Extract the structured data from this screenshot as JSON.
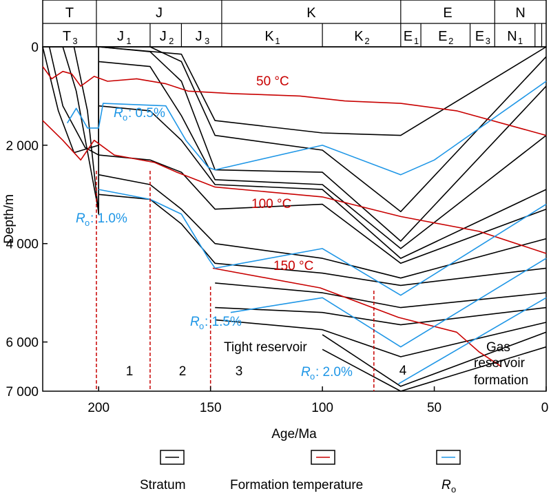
{
  "chart_data": {
    "type": "line",
    "xlabel": "Age/Ma",
    "ylabel": "Depth/m",
    "xlim": [
      225,
      0
    ],
    "ylim": [
      7000,
      0
    ],
    "x_ticks": [
      "200",
      "150",
      "100",
      "50",
      "0"
    ],
    "y_ticks": [
      "0",
      "2 000",
      "4 000",
      "6 000",
      "7 000"
    ],
    "colors": {
      "stratum": "#000000",
      "temperature": "#c80000",
      "ro": "#1e96e6"
    },
    "periods": [
      {
        "label": "T",
        "start": 225,
        "end": 201
      },
      {
        "label": "J",
        "start": 201,
        "end": 145
      },
      {
        "label": "K",
        "start": 145,
        "end": 65
      },
      {
        "label": "E",
        "start": 65,
        "end": 23
      },
      {
        "label": "N",
        "start": 23,
        "end": 0
      }
    ],
    "epochs": [
      {
        "label": "T",
        "sub": "3",
        "start": 225,
        "end": 201
      },
      {
        "label": "J",
        "sub": "1",
        "start": 201,
        "end": 177
      },
      {
        "label": "J",
        "sub": "2",
        "start": 177,
        "end": 163
      },
      {
        "label": "J",
        "sub": "3",
        "start": 163,
        "end": 145
      },
      {
        "label": "K",
        "sub": "1",
        "start": 145,
        "end": 100
      },
      {
        "label": "K",
        "sub": "2",
        "start": 100,
        "end": 65
      },
      {
        "label": "E",
        "sub": "1",
        "start": 65,
        "end": 56
      },
      {
        "label": "E",
        "sub": "2",
        "start": 56,
        "end": 34
      },
      {
        "label": "E",
        "sub": "3",
        "start": 34,
        "end": 23
      },
      {
        "label": "N",
        "sub": "1",
        "start": 23,
        "end": 5
      },
      {
        "label": "",
        "sub": "",
        "start": 5,
        "end": 2
      },
      {
        "label": "",
        "sub": "",
        "start": 2,
        "end": 0
      }
    ],
    "stratum_series": [
      [
        [
          225,
          0
        ],
        [
          200,
          0
        ],
        [
          163,
          150
        ],
        [
          148,
          1500
        ],
        [
          100,
          1750
        ],
        [
          65,
          1800
        ],
        [
          0,
          0
        ]
      ],
      [
        [
          225,
          0
        ],
        [
          218,
          1300
        ],
        [
          211,
          2150
        ],
        [
          200,
          2000
        ],
        [
          200,
          0
        ],
        [
          177,
          0
        ],
        [
          163,
          300
        ],
        [
          148,
          1800
        ],
        [
          100,
          2100
        ],
        [
          65,
          3350
        ],
        [
          0,
          200
        ]
      ],
      [
        [
          222,
          0
        ],
        [
          216,
          1200
        ],
        [
          206,
          2050
        ],
        [
          200,
          2200
        ],
        [
          200,
          0
        ],
        [
          177,
          100
        ],
        [
          163,
          700
        ],
        [
          148,
          2500
        ],
        [
          100,
          2550
        ],
        [
          65,
          3950
        ],
        [
          0,
          800
        ]
      ],
      [
        [
          216,
          0
        ],
        [
          210,
          900
        ],
        [
          200,
          3350
        ],
        [
          200,
          300
        ],
        [
          177,
          400
        ],
        [
          163,
          1400
        ],
        [
          148,
          2700
        ],
        [
          100,
          2800
        ],
        [
          65,
          4100
        ],
        [
          0,
          1800
        ]
      ],
      [
        [
          211,
          0
        ],
        [
          205,
          1300
        ],
        [
          200,
          3400
        ],
        [
          200,
          1200
        ],
        [
          177,
          1300
        ],
        [
          163,
          1900
        ],
        [
          148,
          2800
        ],
        [
          100,
          2900
        ],
        [
          65,
          4300
        ],
        [
          0,
          2900
        ]
      ],
      [
        [
          200,
          2200
        ],
        [
          177,
          2300
        ],
        [
          163,
          2550
        ],
        [
          148,
          3300
        ],
        [
          100,
          3200
        ],
        [
          65,
          4400
        ],
        [
          0,
          3300
        ]
      ],
      [
        [
          200,
          2600
        ],
        [
          177,
          2800
        ],
        [
          163,
          3300
        ],
        [
          148,
          4000
        ],
        [
          100,
          4300
        ],
        [
          65,
          4700
        ],
        [
          0,
          3900
        ]
      ],
      [
        [
          200,
          3000
        ],
        [
          177,
          3100
        ],
        [
          163,
          3600
        ],
        [
          148,
          4400
        ],
        [
          100,
          4600
        ],
        [
          65,
          4850
        ],
        [
          0,
          4500
        ]
      ],
      [
        [
          148,
          4800
        ],
        [
          100,
          5000
        ],
        [
          65,
          5300
        ],
        [
          0,
          5000
        ]
      ],
      [
        [
          148,
          5300
        ],
        [
          100,
          5400
        ],
        [
          65,
          5650
        ],
        [
          0,
          5300
        ]
      ],
      [
        [
          148,
          5550
        ],
        [
          100,
          5750
        ],
        [
          65,
          6300
        ],
        [
          0,
          5600
        ]
      ],
      [
        [
          100,
          5850
        ],
        [
          65,
          6900
        ],
        [
          0,
          5800
        ]
      ],
      [
        [
          100,
          6150
        ],
        [
          65,
          7000
        ],
        [
          0,
          6100
        ]
      ]
    ],
    "temperature_series": [
      {
        "name": "50 °C",
        "points": [
          [
            225,
            400
          ],
          [
            221,
            650
          ],
          [
            216,
            500
          ],
          [
            212,
            550
          ],
          [
            208,
            800
          ],
          [
            202,
            600
          ],
          [
            196,
            700
          ],
          [
            183,
            650
          ],
          [
            170,
            750
          ],
          [
            160,
            900
          ],
          [
            140,
            950
          ],
          [
            110,
            1000
          ],
          [
            90,
            1100
          ],
          [
            65,
            1150
          ],
          [
            40,
            1300
          ],
          [
            0,
            1800
          ]
        ]
      },
      {
        "name": "100 °C",
        "points": [
          [
            225,
            1500
          ],
          [
            216,
            1900
          ],
          [
            208,
            2300
          ],
          [
            202,
            1900
          ],
          [
            193,
            2200
          ],
          [
            175,
            2350
          ],
          [
            165,
            2550
          ],
          [
            148,
            2850
          ],
          [
            100,
            3050
          ],
          [
            65,
            3450
          ],
          [
            30,
            3750
          ],
          [
            0,
            4200
          ]
        ]
      },
      {
        "name": "150 °C",
        "points": [
          [
            149,
            4500
          ],
          [
            101,
            4900
          ],
          [
            66,
            5500
          ],
          [
            40,
            5800
          ],
          [
            30,
            6200
          ],
          [
            20,
            6500
          ]
        ]
      }
    ],
    "ro_series": [
      {
        "name": "Rₒ: 0.5%",
        "points": [
          [
            214,
            1550
          ],
          [
            210,
            1250
          ],
          [
            205,
            1650
          ],
          [
            200,
            1650
          ],
          [
            198,
            1150
          ],
          [
            170,
            1200
          ],
          [
            161,
            1900
          ],
          [
            151,
            2450
          ],
          [
            148,
            2500
          ],
          [
            100,
            2000
          ],
          [
            65,
            2600
          ],
          [
            50,
            2300
          ],
          [
            0,
            700
          ]
        ]
      },
      {
        "name": "Rₒ: 1.0%",
        "points": [
          [
            200,
            2900
          ],
          [
            177,
            3100
          ],
          [
            163,
            3400
          ],
          [
            151,
            4300
          ],
          [
            148,
            4500
          ],
          [
            100,
            4100
          ],
          [
            65,
            5050
          ],
          [
            0,
            3200
          ]
        ]
      },
      {
        "name": "Rₒ: 1.5%",
        "points": [
          [
            141,
            5400
          ],
          [
            100,
            5100
          ],
          [
            65,
            6100
          ],
          [
            0,
            4300
          ]
        ]
      },
      {
        "name": "Rₒ: 2.0%",
        "points": [
          [
            66,
            6850
          ],
          [
            0,
            5100
          ]
        ]
      }
    ],
    "boundaries": [
      201,
      177,
      150,
      77
    ],
    "annotations": {
      "temp50": "50 °C",
      "temp100": "100 °C",
      "temp150": "150 °C",
      "ro_symbol": "R",
      "ro_sub": "o",
      "ro05": ": 0.5%",
      "ro10": ": 1.0%",
      "ro15": ": 1.5%",
      "ro20": ": 2.0%",
      "tight": "Tight reservoir",
      "gas1": "Gas",
      "gas2": "reservoir",
      "gas3": "formation",
      "stage1": "1",
      "stage2": "2",
      "stage3": "3",
      "stage4": "4"
    },
    "legend": {
      "stratum": "Stratum",
      "temperature": "Formation temperature",
      "ro_symbol": "R",
      "ro_sub": "o"
    }
  }
}
